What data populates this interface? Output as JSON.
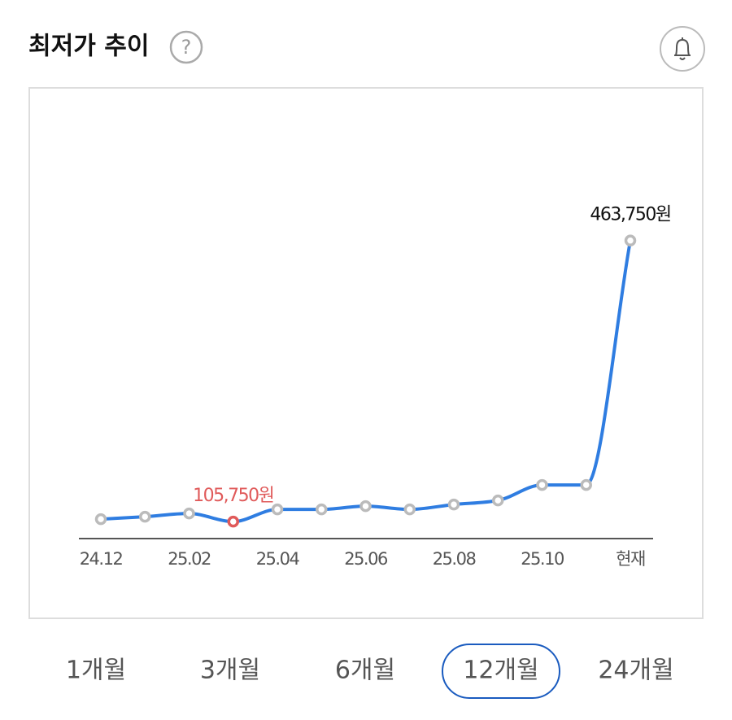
{
  "header": {
    "title": "최저가 추이",
    "help": "?"
  },
  "chart_data": {
    "type": "line",
    "categories": [
      "24.12",
      null,
      "25.02",
      null,
      "25.04",
      null,
      "25.06",
      null,
      "25.08",
      null,
      "25.10",
      null,
      "현재"
    ],
    "values": [
      108860,
      111980,
      116130,
      105750,
      121320,
      121320,
      125470,
      121320,
      127540,
      132730,
      152450,
      152450,
      463750
    ],
    "value_labels": [
      null,
      null,
      null,
      "105,750원",
      null,
      null,
      null,
      null,
      null,
      null,
      null,
      null,
      "463,750원"
    ],
    "color": "#2f7de1",
    "ylim": [
      80000,
      480000
    ]
  },
  "tabs": [
    "1개월",
    "3개월",
    "6개월",
    "12개월",
    "24개월"
  ]
}
